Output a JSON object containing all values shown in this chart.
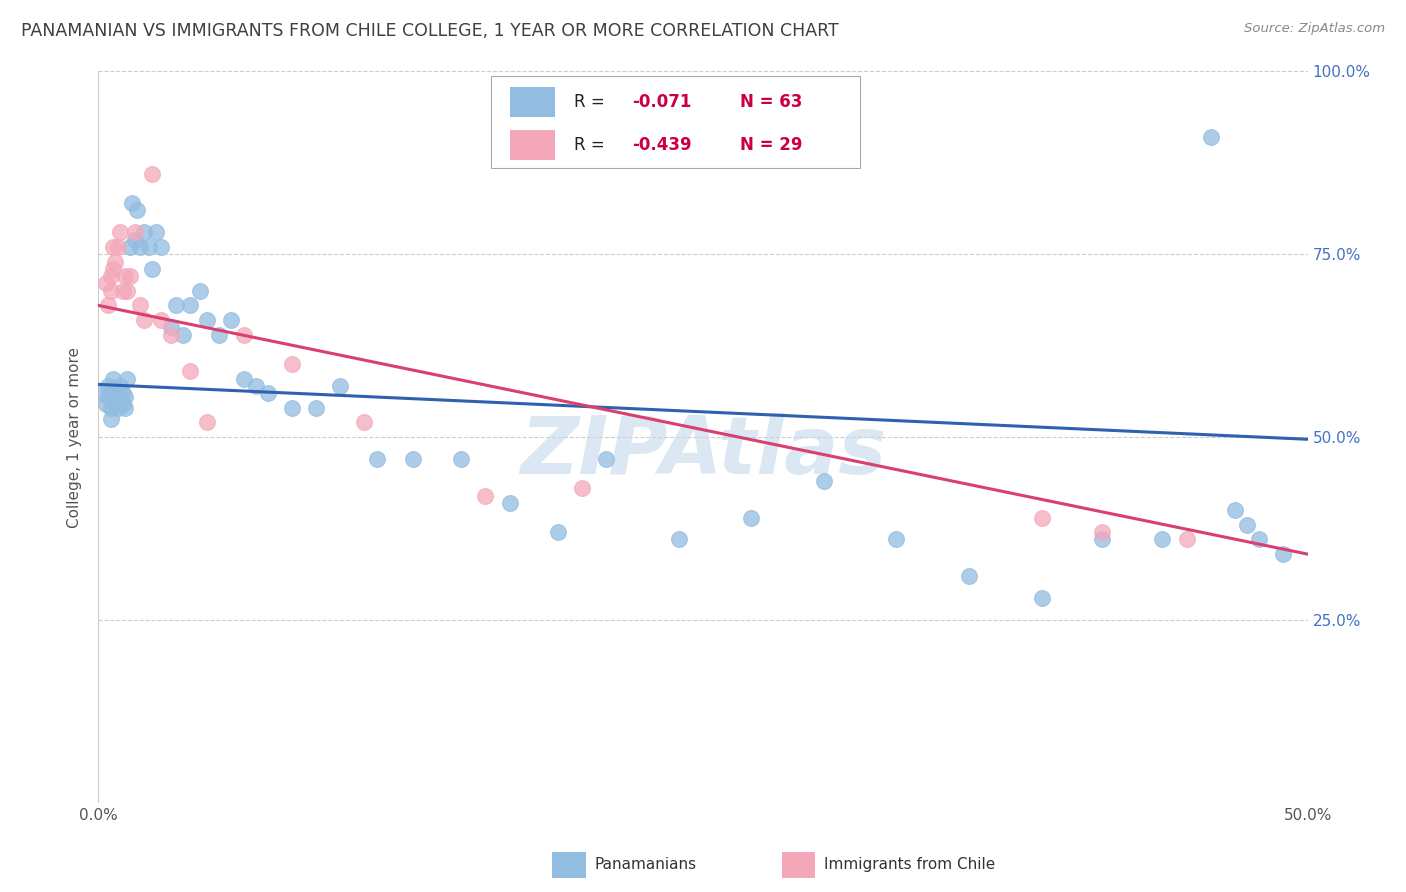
{
  "title": "PANAMANIAN VS IMMIGRANTS FROM CHILE COLLEGE, 1 YEAR OR MORE CORRELATION CHART",
  "source": "Source: ZipAtlas.com",
  "ylabel": "College, 1 year or more",
  "xlim": [
    0.0,
    0.5
  ],
  "ylim": [
    0.0,
    1.0
  ],
  "blue_color": "#92bce0",
  "pink_color": "#f4a7b9",
  "blue_line_color": "#3060b0",
  "pink_line_color": "#d94070",
  "background_color": "#ffffff",
  "grid_color": "#cccccc",
  "title_color": "#404040",
  "axis_label_color": "#555555",
  "right_tick_color": "#4472c4",
  "watermark_color": "#c5d8ee",
  "legend_text_color": "#404040",
  "legend_rn_color": "#c0003c",
  "blue_line_y0": 0.572,
  "blue_line_y1": 0.497,
  "pink_line_y0": 0.68,
  "pink_line_y1": 0.34,
  "blue_scatter_x": [
    0.002,
    0.003,
    0.004,
    0.004,
    0.005,
    0.005,
    0.005,
    0.006,
    0.006,
    0.007,
    0.007,
    0.008,
    0.008,
    0.009,
    0.009,
    0.01,
    0.01,
    0.011,
    0.011,
    0.012,
    0.013,
    0.014,
    0.015,
    0.016,
    0.017,
    0.019,
    0.021,
    0.022,
    0.024,
    0.026,
    0.03,
    0.032,
    0.035,
    0.038,
    0.042,
    0.045,
    0.05,
    0.055,
    0.06,
    0.065,
    0.07,
    0.08,
    0.09,
    0.1,
    0.115,
    0.13,
    0.15,
    0.17,
    0.19,
    0.21,
    0.24,
    0.27,
    0.3,
    0.33,
    0.36,
    0.39,
    0.415,
    0.44,
    0.46,
    0.47,
    0.475,
    0.48,
    0.49
  ],
  "blue_scatter_y": [
    0.56,
    0.545,
    0.555,
    0.57,
    0.525,
    0.54,
    0.56,
    0.58,
    0.56,
    0.545,
    0.555,
    0.54,
    0.565,
    0.57,
    0.55,
    0.545,
    0.56,
    0.54,
    0.555,
    0.58,
    0.76,
    0.82,
    0.77,
    0.81,
    0.76,
    0.78,
    0.76,
    0.73,
    0.78,
    0.76,
    0.65,
    0.68,
    0.64,
    0.68,
    0.7,
    0.66,
    0.64,
    0.66,
    0.58,
    0.57,
    0.56,
    0.54,
    0.54,
    0.57,
    0.47,
    0.47,
    0.47,
    0.41,
    0.37,
    0.47,
    0.36,
    0.39,
    0.44,
    0.36,
    0.31,
    0.28,
    0.36,
    0.36,
    0.91,
    0.4,
    0.38,
    0.36,
    0.34
  ],
  "pink_scatter_x": [
    0.003,
    0.004,
    0.005,
    0.005,
    0.006,
    0.006,
    0.007,
    0.008,
    0.009,
    0.01,
    0.011,
    0.012,
    0.013,
    0.015,
    0.017,
    0.019,
    0.022,
    0.026,
    0.03,
    0.038,
    0.045,
    0.06,
    0.08,
    0.11,
    0.16,
    0.2,
    0.39,
    0.415,
    0.45
  ],
  "pink_scatter_y": [
    0.71,
    0.68,
    0.72,
    0.7,
    0.76,
    0.73,
    0.74,
    0.76,
    0.78,
    0.7,
    0.72,
    0.7,
    0.72,
    0.78,
    0.68,
    0.66,
    0.86,
    0.66,
    0.64,
    0.59,
    0.52,
    0.64,
    0.6,
    0.52,
    0.42,
    0.43,
    0.39,
    0.37,
    0.36
  ]
}
